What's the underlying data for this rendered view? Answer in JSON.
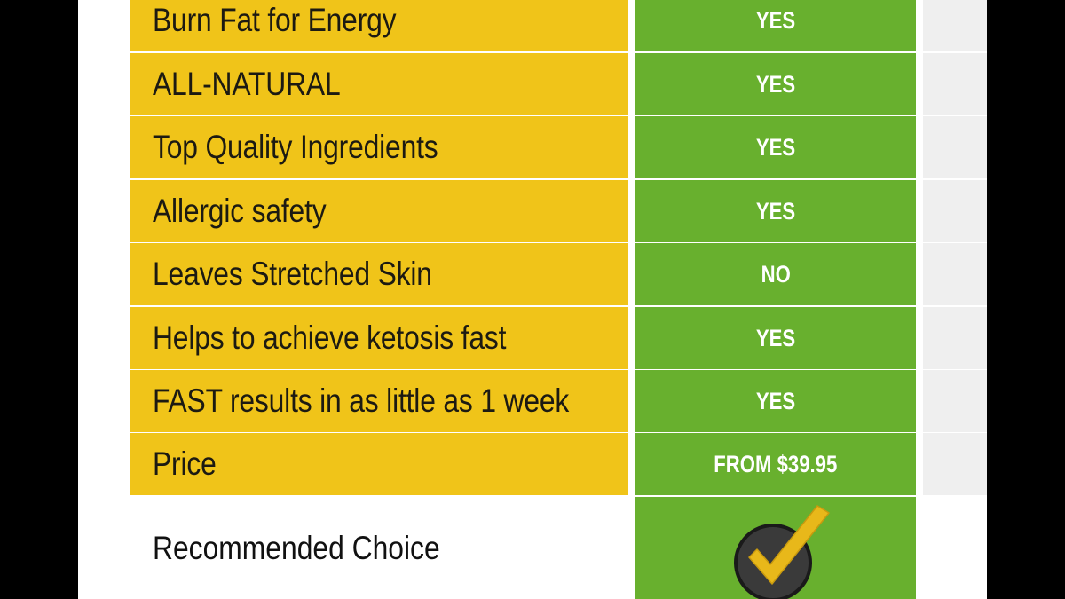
{
  "comparison": {
    "rows": [
      {
        "feature": "Burn Fat for Energy",
        "value": "YES"
      },
      {
        "feature": "ALL-NATURAL",
        "value": "YES"
      },
      {
        "feature": "Top Quality Ingredients",
        "value": "YES"
      },
      {
        "feature": "Allergic safety",
        "value": "YES"
      },
      {
        "feature": "Leaves Stretched Skin",
        "value": "NO"
      },
      {
        "feature": "Helps to achieve ketosis fast",
        "value": "YES"
      },
      {
        "feature": "FAST results in as little as 1 week",
        "value": "YES"
      },
      {
        "feature": "Price",
        "value": "FROM $39.95"
      }
    ],
    "recommended": {
      "label": "Recommended Choice",
      "icon": "checkmark-badge-icon"
    }
  },
  "colors": {
    "label_bg": "#f0c419",
    "value_bg": "#68b02e",
    "extra_bg": "#efefef",
    "check_gold": "#e8b81a",
    "check_circle": "#3a3a3a"
  }
}
